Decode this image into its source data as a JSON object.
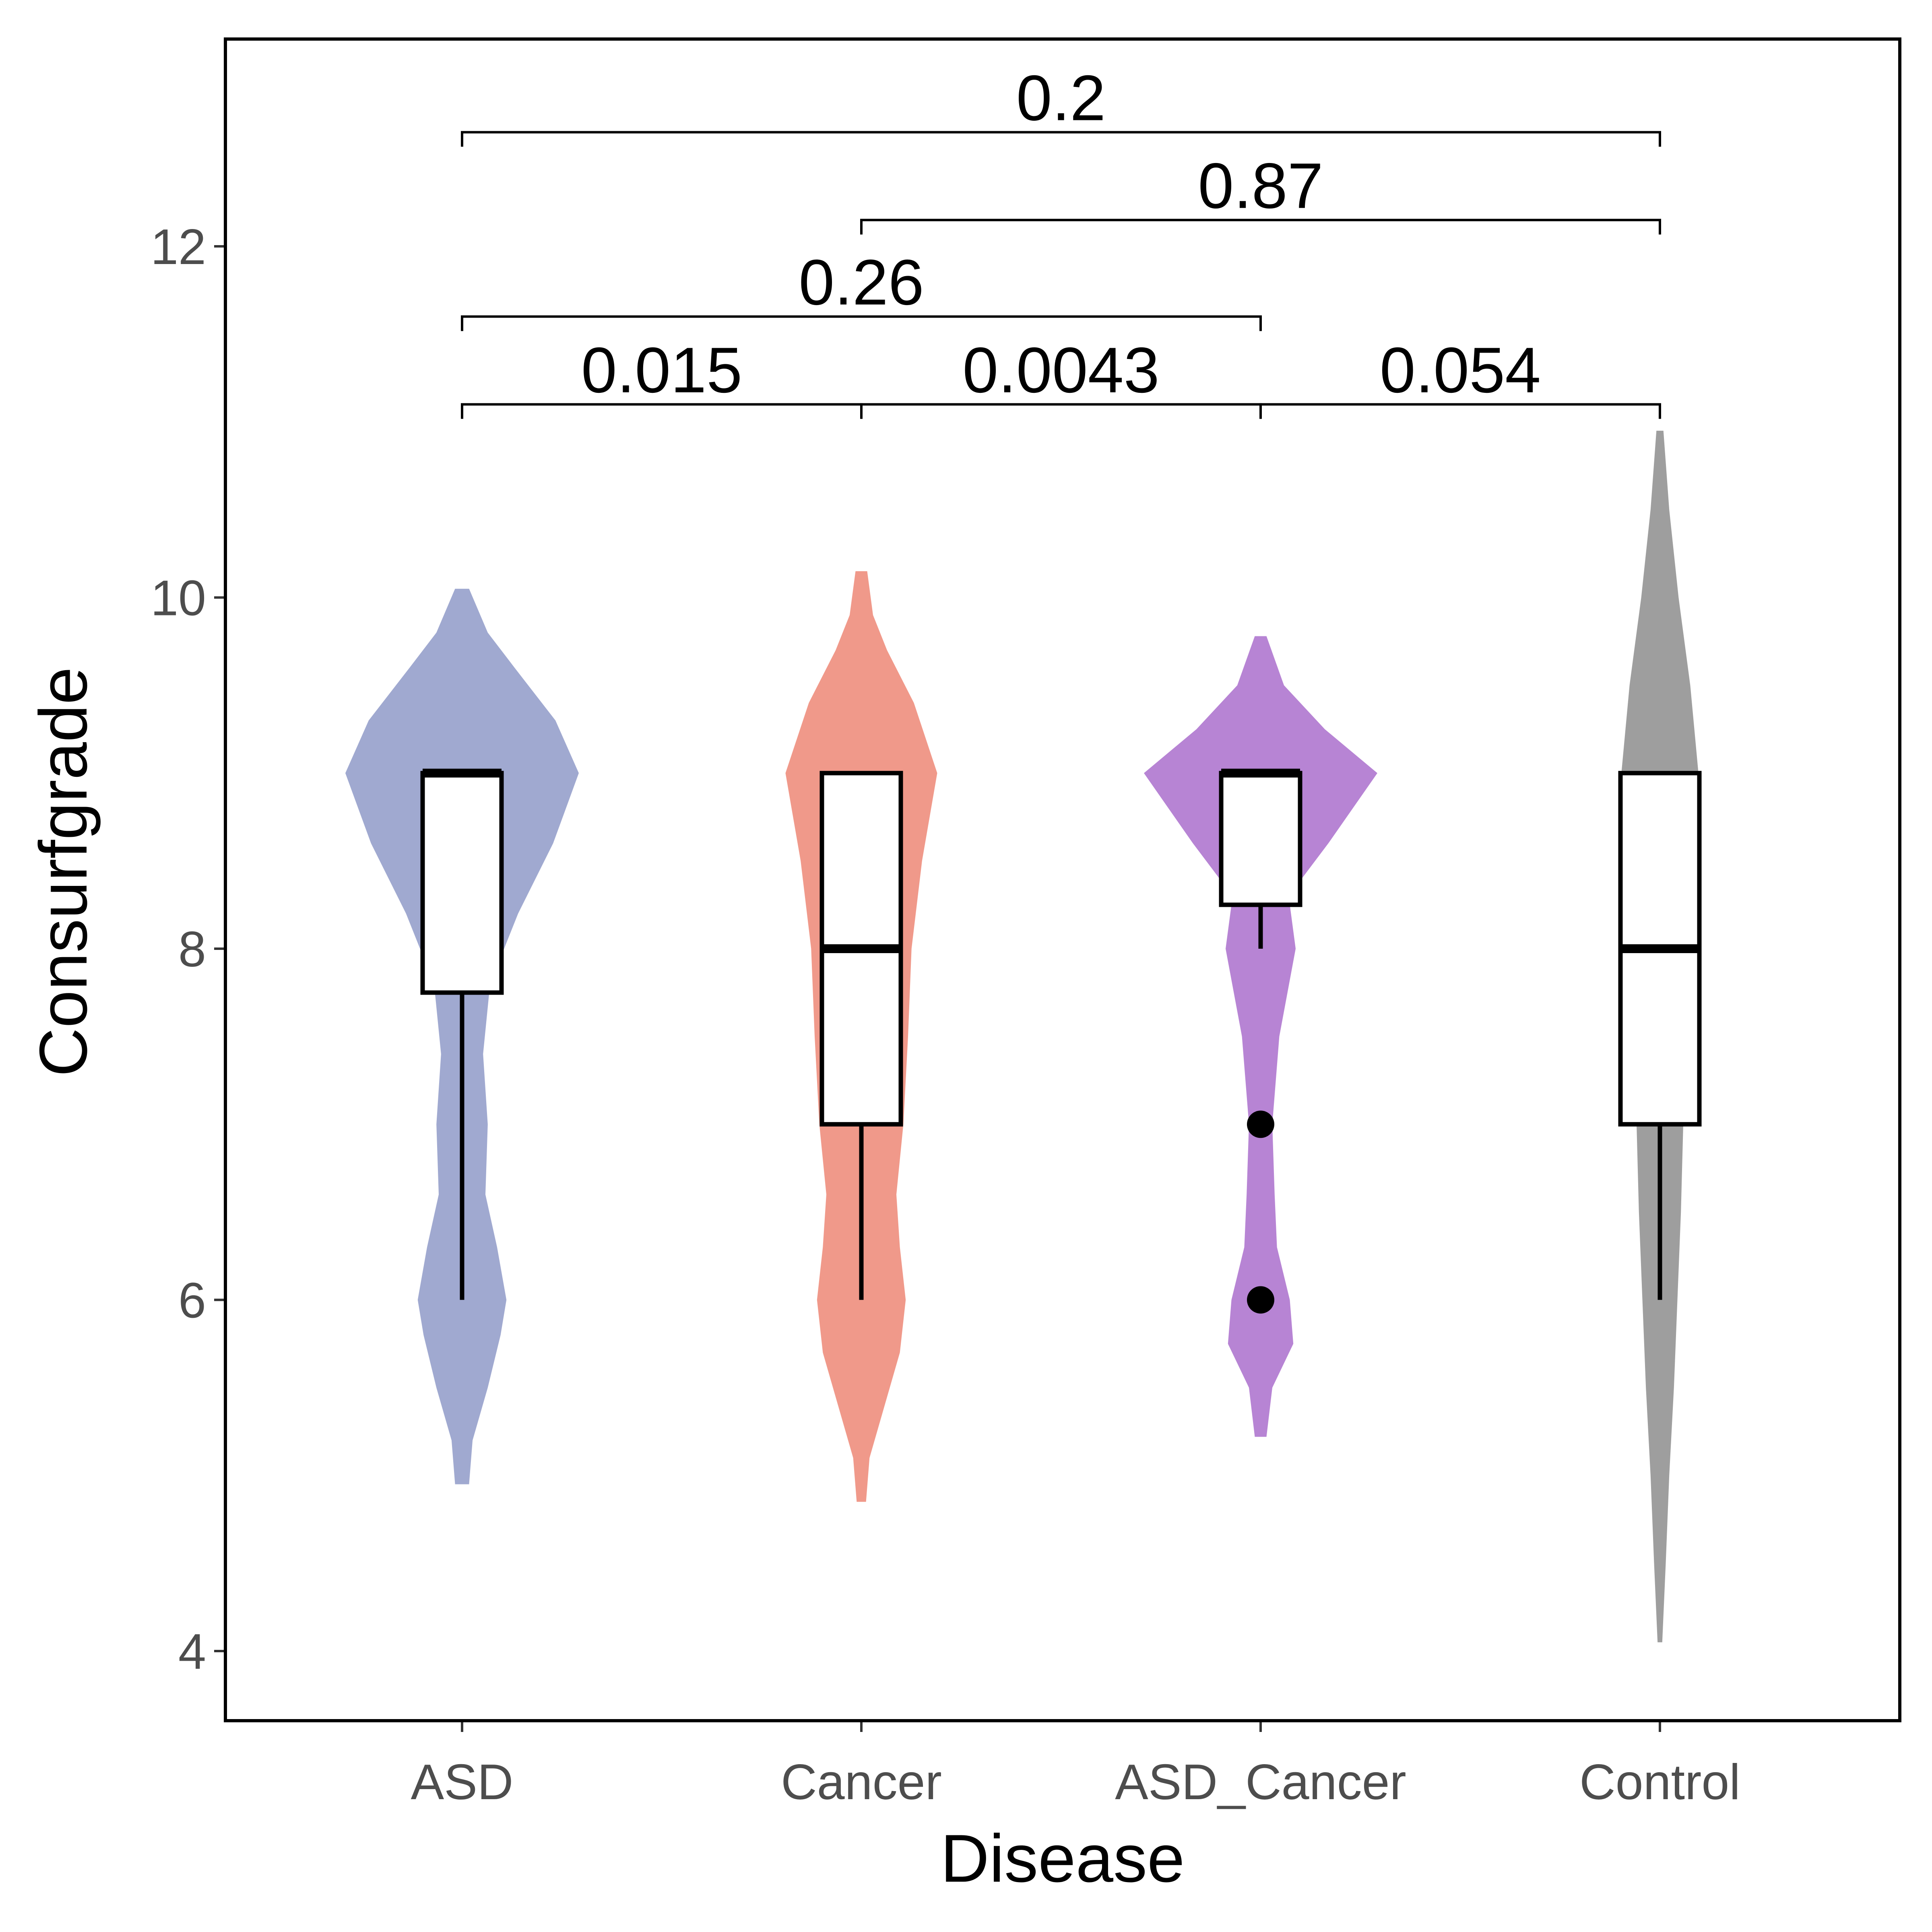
{
  "chart_data": {
    "type": "violin",
    "xlabel": "Disease",
    "ylabel": "Consurfgrade",
    "ylim": [
      3.6,
      13.1
    ],
    "y_ticks": [
      4,
      6,
      8,
      10,
      12
    ],
    "categories": [
      "ASD",
      "Cancer",
      "ASD_Cancer",
      "Control"
    ],
    "colors": {
      "ASD": "#a0a9d0",
      "Cancer": "#f0998a",
      "ASD_Cancer": "#b784d4",
      "Control": "#9e9e9e"
    },
    "groups": [
      {
        "name": "ASD",
        "violin_range": [
          4.95,
          10.05
        ],
        "density": [
          [
            4.95,
            0.06
          ],
          [
            5.2,
            0.09
          ],
          [
            5.5,
            0.22
          ],
          [
            5.8,
            0.33
          ],
          [
            6.0,
            0.38
          ],
          [
            6.3,
            0.3
          ],
          [
            6.6,
            0.2
          ],
          [
            7.0,
            0.22
          ],
          [
            7.4,
            0.18
          ],
          [
            7.8,
            0.24
          ],
          [
            8.2,
            0.48
          ],
          [
            8.6,
            0.78
          ],
          [
            9.0,
            1.0
          ],
          [
            9.3,
            0.8
          ],
          [
            9.6,
            0.45
          ],
          [
            9.8,
            0.22
          ],
          [
            10.05,
            0.06
          ]
        ],
        "box": {
          "q1": 7.75,
          "median": 9.0,
          "q3": 9.0,
          "whisker_low": 6.0,
          "whisker_high": 9.0
        },
        "outliers": []
      },
      {
        "name": "Cancer",
        "violin_range": [
          4.85,
          10.15
        ],
        "density": [
          [
            4.85,
            0.04
          ],
          [
            5.1,
            0.07
          ],
          [
            5.4,
            0.2
          ],
          [
            5.7,
            0.33
          ],
          [
            6.0,
            0.38
          ],
          [
            6.3,
            0.33
          ],
          [
            6.6,
            0.3
          ],
          [
            7.0,
            0.36
          ],
          [
            7.5,
            0.4
          ],
          [
            8.0,
            0.43
          ],
          [
            8.5,
            0.52
          ],
          [
            9.0,
            0.65
          ],
          [
            9.4,
            0.45
          ],
          [
            9.7,
            0.22
          ],
          [
            9.9,
            0.1
          ],
          [
            10.15,
            0.05
          ]
        ],
        "box": {
          "q1": 7.0,
          "median": 8.0,
          "q3": 9.0,
          "whisker_low": 6.0,
          "whisker_high": 9.0
        },
        "outliers": []
      },
      {
        "name": "ASD_Cancer",
        "violin_range": [
          5.22,
          9.78
        ],
        "density": [
          [
            5.22,
            0.05
          ],
          [
            5.5,
            0.1
          ],
          [
            5.75,
            0.28
          ],
          [
            6.0,
            0.25
          ],
          [
            6.3,
            0.14
          ],
          [
            6.6,
            0.12
          ],
          [
            7.0,
            0.1
          ],
          [
            7.5,
            0.16
          ],
          [
            8.0,
            0.3
          ],
          [
            8.3,
            0.24
          ],
          [
            8.6,
            0.58
          ],
          [
            9.0,
            1.0
          ],
          [
            9.25,
            0.55
          ],
          [
            9.5,
            0.2
          ],
          [
            9.78,
            0.05
          ]
        ],
        "box": {
          "q1": 8.25,
          "median": 9.0,
          "q3": 9.0,
          "whisker_low": 8.0,
          "whisker_high": 9.0
        },
        "outliers": [
          7.0,
          6.0
        ]
      },
      {
        "name": "Control",
        "violin_range": [
          4.05,
          10.95
        ],
        "density": [
          [
            4.05,
            0.02
          ],
          [
            4.5,
            0.05
          ],
          [
            5.0,
            0.08
          ],
          [
            5.5,
            0.12
          ],
          [
            6.0,
            0.15
          ],
          [
            6.5,
            0.18
          ],
          [
            7.0,
            0.2
          ],
          [
            7.5,
            0.22
          ],
          [
            8.0,
            0.25
          ],
          [
            8.5,
            0.3
          ],
          [
            9.0,
            0.33
          ],
          [
            9.5,
            0.26
          ],
          [
            10.0,
            0.16
          ],
          [
            10.5,
            0.08
          ],
          [
            10.95,
            0.03
          ]
        ],
        "box": {
          "q1": 7.0,
          "median": 8.0,
          "q3": 9.0,
          "whisker_low": 6.0,
          "whisker_high": 9.0
        },
        "outliers": []
      }
    ],
    "comparisons": [
      {
        "from": "ASD",
        "to": "Cancer",
        "p": "0.015",
        "y": 11.1
      },
      {
        "from": "Cancer",
        "to": "ASD_Cancer",
        "p": "0.0043",
        "y": 11.1
      },
      {
        "from": "ASD_Cancer",
        "to": "Control",
        "p": "0.054",
        "y": 11.1
      },
      {
        "from": "ASD",
        "to": "ASD_Cancer",
        "p": "0.26",
        "y": 11.6
      },
      {
        "from": "Cancer",
        "to": "Control",
        "p": "0.87",
        "y": 12.15
      },
      {
        "from": "ASD",
        "to": "Control",
        "p": "0.2",
        "y": 12.65
      }
    ],
    "grid": false,
    "legend": "none"
  }
}
